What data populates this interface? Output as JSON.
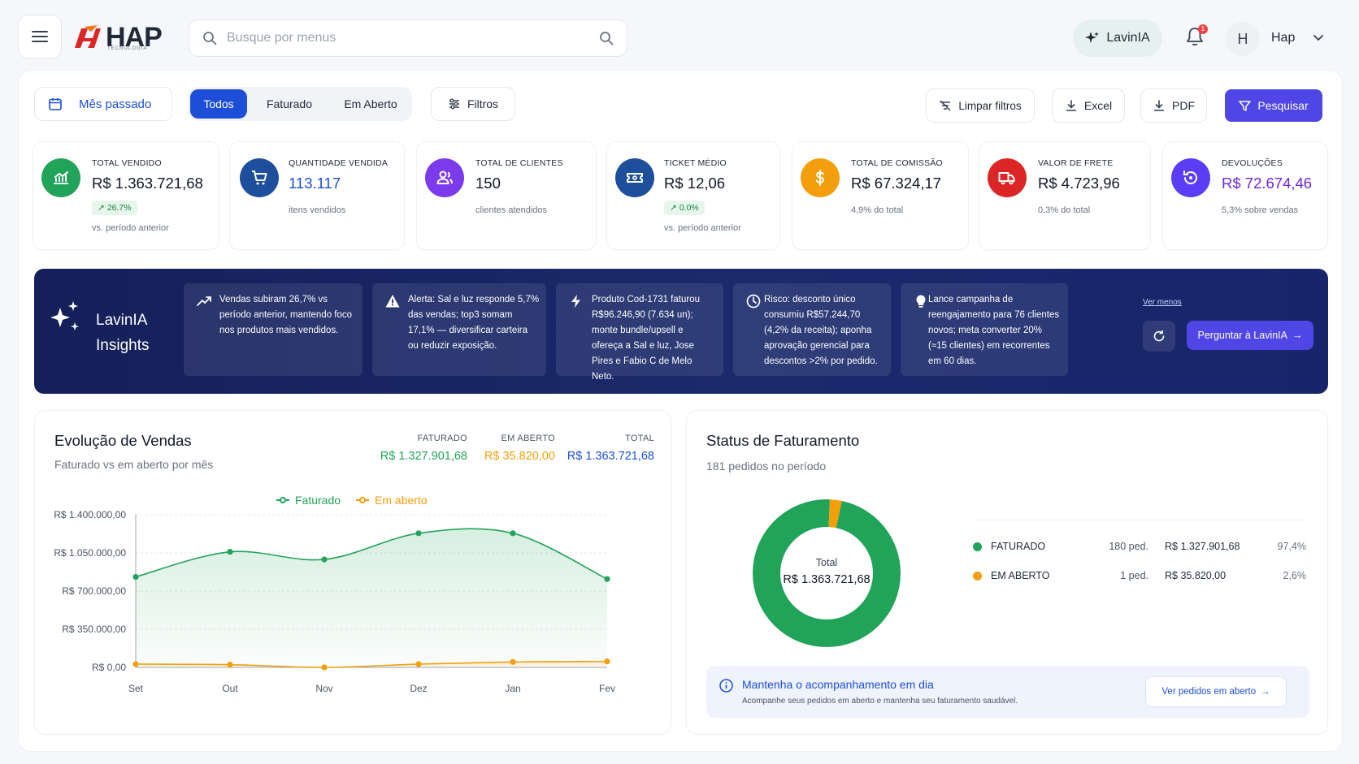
{
  "header": {
    "logo_text": "HAP",
    "logo_sub": "TECNOLOGIA",
    "search_placeholder": "Busque por menus",
    "lavinia_label": "LavinIA",
    "notification_count": "1",
    "avatar_initial": "H",
    "user_name": "Hap"
  },
  "filters": {
    "period_label": "Mês passado",
    "segments": [
      "Todos",
      "Faturado",
      "Em Aberto"
    ],
    "active_segment": "Todos",
    "filters_label": "Filtros",
    "clear_label": "Limpar filtros",
    "excel_label": "Excel",
    "pdf_label": "PDF",
    "search_label": "Pesquisar"
  },
  "kpis": [
    {
      "label": "TOTAL VENDIDO",
      "value": "R$ 1.363.721,68",
      "badge": "26.7%",
      "sub": "vs. período anterior",
      "color": "#22a35a",
      "value_color": "#111827",
      "icon": "trend-chart-icon"
    },
    {
      "label": "QUANTIDADE VENDIDA",
      "value": "113.117",
      "sub": "itens vendidos",
      "color": "#1d4ed8",
      "value_color": "#1d4ed8",
      "icon": "cart-icon"
    },
    {
      "label": "TOTAL DE CLIENTES",
      "value": "150",
      "sub": "clientes atendidos",
      "color": "#7c3aed",
      "value_color": "#111827",
      "icon": "users-icon"
    },
    {
      "label": "TICKET MÉDIO",
      "value": "R$ 12,06",
      "badge": "0.0%",
      "sub": "vs. período anterior",
      "color": "#1e4f9c",
      "value_color": "#111827",
      "icon": "ticket-icon"
    },
    {
      "label": "TOTAL DE COMISSÃO",
      "value": "R$ 67.324,17",
      "sub": "4,9% do total",
      "color": "#f59e0b",
      "value_color": "#111827",
      "icon": "dollar-icon"
    },
    {
      "label": "VALOR DE FRETE",
      "value": "R$ 4.723,96",
      "sub": "0,3% do total",
      "color": "#dc2626",
      "value_color": "#111827",
      "icon": "truck-icon"
    },
    {
      "label": "DEVOLUÇÕES",
      "value": "R$ 72.674,46",
      "sub": "5,3% sobre vendas",
      "color": "#5b3df5",
      "value_color": "#6d28d9",
      "icon": "return-icon"
    }
  ],
  "insights": {
    "title_line1": "LavinIA",
    "title_line2": "Insights",
    "cards": [
      {
        "icon": "trend-up-icon",
        "text": "Vendas subiram 26,7% vs período anterior, mantendo foco nos produtos mais vendidos."
      },
      {
        "icon": "alert-icon",
        "text": "Alerta: Sal e luz responde 5,7% das vendas; top3 somam 17,1% — diversificar carteira ou reduzir exposição."
      },
      {
        "icon": "bolt-icon",
        "text": "Produto Cod-1731 faturou R$96.246,90 (7.634 un); monte bundle/upsell e ofereça a Sal e luz, Jose Pires e Fabio C de Melo Neto."
      },
      {
        "icon": "clock-icon",
        "text": "Risco: desconto único consumiu R$57.244,70 (4,2% da receita); aponha aprovação gerencial para descontos >2% por pedido."
      },
      {
        "icon": "bulb-icon",
        "text": "Lance campanha de reengajamento para 76 clientes novos; meta converter 20% (≈15 clientes) em recorrentes em 60 dias."
      }
    ],
    "see_less": "Ver menos",
    "ask_label": "Perguntar à LavinIA"
  },
  "sales_panel": {
    "title": "Evolução de Vendas",
    "subtitle": "Faturado vs em aberto por mês",
    "totals": [
      {
        "label": "FATURADO",
        "value": "R$ 1.327.901,68",
        "color": "#22a35a"
      },
      {
        "label": "EM ABERTO",
        "value": "R$ 35.820,00",
        "color": "#f59e0b"
      },
      {
        "label": "TOTAL",
        "value": "R$ 1.363.721,68",
        "color": "#1d4ed8"
      }
    ],
    "legend": [
      "Faturado",
      "Em aberto"
    ]
  },
  "chart_data": {
    "type": "area",
    "categories": [
      "Set",
      "Out",
      "Nov",
      "Dez",
      "Jan",
      "Fev"
    ],
    "y_ticks": [
      "R$ 0,00",
      "R$ 350.000,00",
      "R$ 700.000,00",
      "R$ 1.050.000,00",
      "R$ 1.400.000,00"
    ],
    "ylim": [
      0,
      1400000
    ],
    "grid": true,
    "legend_position": "top-center",
    "series": [
      {
        "name": "Faturado",
        "color": "#22a35a",
        "values": [
          830000,
          1060000,
          990000,
          1230000,
          1230000,
          810000
        ]
      },
      {
        "name": "Em aberto",
        "color": "#f59e0b",
        "values": [
          30000,
          25000,
          0,
          30000,
          50000,
          55000
        ]
      }
    ]
  },
  "status_panel": {
    "title": "Status de Faturamento",
    "subtitle": "181 pedidos no período",
    "donut_center_label": "Total",
    "donut_center_value": "R$ 1.363.721,68",
    "rows": [
      {
        "label": "FATURADO",
        "count": "180 ped.",
        "value": "R$ 1.327.901,68",
        "pct": "97,4%",
        "color": "#22a35a",
        "share": 0.974
      },
      {
        "label": "EM ABERTO",
        "count": "1 ped.",
        "value": "R$ 35.820,00",
        "pct": "2,6%",
        "color": "#f59e0b",
        "share": 0.026
      }
    ],
    "notice_title": "Mantenha o acompanhamento em dia",
    "notice_sub": "Acompanhe seus pedidos em aberto e mantenha seu faturamento saudável.",
    "notice_button": "Ver pedidos em aberto"
  }
}
